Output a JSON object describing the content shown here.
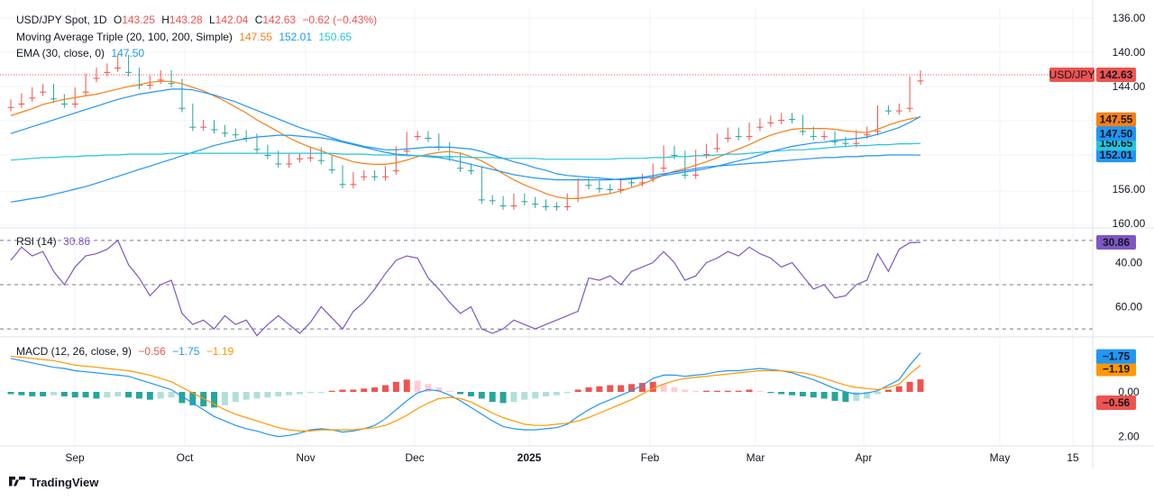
{
  "colors": {
    "up": "#26a69a",
    "down": "#ef5350",
    "sma20": "#f57f17",
    "sma100": "#2196f3",
    "sma200": "#26c6da",
    "ema30": "#2196f3",
    "rsi_line": "#7e57c2",
    "rsi_band": "#ede7f6",
    "macd_line": "#2196f3",
    "signal_line": "#ff9800",
    "hist_pos_strong": "#26a69a",
    "hist_pos_weak": "#b2dfdb",
    "hist_neg_strong": "#ef5350",
    "hist_neg_weak": "#ffcdd2"
  },
  "header": {
    "symbol": "USD/JPY Spot, 1D",
    "o_label": "O",
    "o": "143.25",
    "h_label": "H",
    "h": "143.28",
    "l_label": "L",
    "l": "142.04",
    "c_label": "C",
    "c": "142.63",
    "change": "−0.62 (−0.43%)",
    "ma_title": "Moving Average Triple (20, 100, 200, Simple)",
    "ma20": "147.55",
    "ma100": "152.01",
    "ma200": "150.65",
    "ema_title": "EMA (30, close, 0)",
    "ema": "147.50"
  },
  "rsi_legend": {
    "title": "RSI (14)",
    "value": "30.86"
  },
  "macd_legend": {
    "title": "MACD (12, 26, close, 9)",
    "hist": "−0.56",
    "macd": "−1.75",
    "signal": "−1.19"
  },
  "footer": {
    "brand": "TradingView"
  },
  "chart_data": [
    {
      "type": "candlestick",
      "title": "USD/JPY Spot, 1D",
      "x": [
        "Aug 19",
        "Aug 21",
        "Aug 23",
        "Aug 27",
        "Aug 29",
        "Sep 2",
        "Sep 4",
        "Sep 6",
        "Sep 10",
        "Sep 12",
        "Sep 16",
        "Sep 18",
        "Sep 20",
        "Sep 24",
        "Sep 26",
        "Sep 30",
        "Oct 2",
        "Oct 4",
        "Oct 8",
        "Oct 10",
        "Oct 14",
        "Oct 16",
        "Oct 18",
        "Oct 22",
        "Oct 24",
        "Oct 28",
        "Oct 30",
        "Nov 1",
        "Nov 5",
        "Nov 7",
        "Nov 11",
        "Nov 13",
        "Nov 15",
        "Nov 19",
        "Nov 21",
        "Nov 25",
        "Nov 27",
        "Nov 29",
        "Dec 3",
        "Dec 5",
        "Dec 9",
        "Dec 11",
        "Dec 13",
        "Dec 17",
        "Dec 19",
        "Dec 23",
        "Dec 26",
        "Dec 30",
        "Jan 2",
        "Jan 6",
        "Jan 8",
        "Jan 10",
        "Jan 14",
        "Jan 16",
        "Jan 20",
        "Jan 22",
        "Jan 24",
        "Jan 28",
        "Jan 30",
        "Feb 3",
        "Feb 5",
        "Feb 7",
        "Feb 11",
        "Feb 13",
        "Feb 17",
        "Feb 19",
        "Feb 21",
        "Feb 25",
        "Feb 27",
        "Mar 3",
        "Mar 5",
        "Mar 7",
        "Mar 11",
        "Mar 13",
        "Mar 17",
        "Mar 19",
        "Mar 21",
        "Mar 25",
        "Mar 27",
        "Mar 31",
        "Apr 2",
        "Apr 4",
        "Apr 8",
        "Apr 10",
        "Apr 14",
        "Apr 16"
      ],
      "close": [
        146.0,
        145.3,
        144.6,
        144.2,
        145.4,
        146.0,
        144.6,
        143.0,
        142.3,
        141.8,
        140.8,
        142.3,
        143.8,
        143.2,
        142.6,
        143.6,
        146.5,
        148.7,
        148.4,
        149.0,
        149.4,
        149.6,
        150.0,
        151.3,
        152.0,
        153.0,
        152.4,
        152.3,
        151.6,
        152.6,
        153.7,
        155.4,
        154.5,
        154.3,
        154.5,
        153.8,
        151.5,
        149.8,
        149.7,
        150.0,
        151.0,
        152.2,
        153.5,
        153.8,
        157.2,
        157.3,
        157.9,
        157.0,
        157.4,
        157.7,
        158.0,
        158.0,
        157.0,
        155.2,
        155.5,
        155.9,
        156.0,
        155.2,
        155.2,
        154.7,
        153.5,
        151.4,
        152.0,
        154.3,
        151.9,
        151.2,
        150.0,
        149.3,
        149.8,
        148.7,
        148.2,
        147.9,
        147.6,
        147.8,
        149.2,
        149.8,
        149.7,
        150.4,
        150.6,
        149.6,
        149.2,
        146.7,
        146.8,
        146.5,
        143.3,
        142.63
      ],
      "ylim": [
        134,
        161
      ],
      "y_ticks": [
        "160.00",
        "156.00",
        "152.01",
        "150.65",
        "147.55",
        "147.50",
        "144.00",
        "142.63",
        "140.00",
        "136.00"
      ],
      "series": [
        {
          "name": "20",
          "values": [
            147.4,
            147.0,
            146.6,
            146.1,
            145.8,
            145.5,
            145.3,
            145.1,
            144.9,
            144.6,
            144.3,
            144.0,
            143.8,
            143.5,
            143.4,
            143.4,
            143.7,
            144.1,
            144.5,
            145.1,
            145.7,
            146.4,
            147.1,
            147.9,
            148.6,
            149.3,
            150.0,
            150.6,
            151.1,
            151.5,
            152.0,
            152.4,
            152.8,
            153.0,
            153.1,
            153.1,
            152.9,
            152.6,
            152.2,
            151.9,
            151.7,
            151.6,
            151.8,
            152.2,
            152.7,
            153.4,
            154.2,
            154.9,
            155.5,
            156.0,
            156.5,
            156.9,
            157.1,
            157.1,
            156.9,
            156.7,
            156.5,
            156.2,
            155.8,
            155.4,
            154.9,
            154.3,
            153.9,
            153.6,
            153.2,
            152.8,
            152.3,
            151.8,
            151.3,
            150.8,
            150.2,
            149.7,
            149.3,
            149.0,
            148.9,
            148.9,
            148.9,
            149.0,
            149.2,
            149.3,
            149.4,
            149.0,
            148.5,
            148.1,
            147.8,
            147.55
          ]
        },
        {
          "name": "100",
          "values": [
            157.5,
            157.3,
            157.1,
            156.9,
            156.6,
            156.3,
            156.0,
            155.7,
            155.3,
            154.9,
            154.5,
            154.1,
            153.7,
            153.3,
            152.9,
            152.5,
            152.1,
            151.7,
            151.3,
            150.9,
            150.6,
            150.3,
            150.1,
            149.9,
            149.8,
            149.7,
            149.7,
            149.8,
            149.9,
            150.0,
            150.2,
            150.5,
            150.8,
            151.1,
            151.4,
            151.7,
            151.9,
            152.0,
            152.1,
            152.2,
            152.3,
            152.5,
            152.8,
            153.1,
            153.4,
            153.7,
            154.0,
            154.3,
            154.5,
            154.7,
            154.8,
            154.9,
            154.9,
            154.9,
            154.9,
            154.9,
            154.9,
            154.8,
            154.7,
            154.6,
            154.4,
            154.2,
            154.0,
            153.8,
            153.6,
            153.4,
            153.3,
            153.2,
            153.1,
            153.0,
            152.9,
            152.8,
            152.7,
            152.6,
            152.5,
            152.4,
            152.3,
            152.3,
            152.2,
            152.2,
            152.1,
            152.1,
            152.0,
            152.0,
            152.0,
            152.01
          ]
        },
        {
          "name": "200",
          "values": [
            152.6,
            152.5,
            152.4,
            152.3,
            152.3,
            152.2,
            152.2,
            152.1,
            152.1,
            152.0,
            152.0,
            151.9,
            151.9,
            151.9,
            151.9,
            151.8,
            151.8,
            151.8,
            151.8,
            151.8,
            151.8,
            151.8,
            151.8,
            151.8,
            151.8,
            151.8,
            151.8,
            151.8,
            151.8,
            151.8,
            151.8,
            151.9,
            151.9,
            151.9,
            152.0,
            152.0,
            152.0,
            152.1,
            152.1,
            152.1,
            152.2,
            152.2,
            152.2,
            152.3,
            152.3,
            152.3,
            152.4,
            152.4,
            152.4,
            152.4,
            152.5,
            152.5,
            152.5,
            152.5,
            152.5,
            152.5,
            152.5,
            152.4,
            152.4,
            152.4,
            152.3,
            152.3,
            152.2,
            152.2,
            152.1,
            152.1,
            152.0,
            151.9,
            151.9,
            151.8,
            151.7,
            151.6,
            151.5,
            151.4,
            151.4,
            151.3,
            151.2,
            151.1,
            151.0,
            150.9,
            150.9,
            150.8,
            150.8,
            150.7,
            150.7,
            150.65
          ]
        },
        {
          "name": "EMA 30",
          "values": [
            149.5,
            149.1,
            148.7,
            148.3,
            147.9,
            147.5,
            147.1,
            146.7,
            146.3,
            145.9,
            145.5,
            145.2,
            144.9,
            144.7,
            144.5,
            144.3,
            144.3,
            144.4,
            144.7,
            145.0,
            145.4,
            145.8,
            146.3,
            146.8,
            147.3,
            147.8,
            148.3,
            148.8,
            149.2,
            149.6,
            150.0,
            150.4,
            150.7,
            151.0,
            151.2,
            151.4,
            151.4,
            151.3,
            151.2,
            151.1,
            151.1,
            151.1,
            151.2,
            151.3,
            151.6,
            152.0,
            152.4,
            152.8,
            153.1,
            153.5,
            153.8,
            154.2,
            154.4,
            154.5,
            154.6,
            154.7,
            154.8,
            154.9,
            154.8,
            154.7,
            154.6,
            154.4,
            154.2,
            154.0,
            153.8,
            153.6,
            153.3,
            153.0,
            152.7,
            152.4,
            152.0,
            151.6,
            151.3,
            151.0,
            150.8,
            150.6,
            150.5,
            150.3,
            150.2,
            150.1,
            149.9,
            149.6,
            149.2,
            148.8,
            148.2,
            147.5
          ]
        }
      ]
    },
    {
      "type": "line",
      "title": "RSI (14)",
      "values": [
        39,
        33,
        37,
        35,
        44,
        50,
        42,
        37,
        36,
        34,
        30,
        41,
        47,
        55,
        50,
        48,
        63,
        68,
        66,
        70,
        64,
        68,
        66,
        73,
        68,
        64,
        68,
        72,
        67,
        60,
        65,
        70,
        62,
        58,
        52,
        45,
        39,
        37,
        38,
        47,
        52,
        58,
        63,
        60,
        70,
        72,
        70,
        66,
        68,
        70,
        68,
        66,
        64,
        62,
        47,
        48,
        46,
        50,
        44,
        42,
        40,
        35,
        40,
        48,
        46,
        40,
        38,
        35,
        37,
        33,
        36,
        38,
        42,
        40,
        46,
        52,
        50,
        56,
        55,
        50,
        48,
        36,
        44,
        34,
        31,
        30.86
      ],
      "ylim": [
        28,
        72
      ],
      "y_ticks": [
        "60.00",
        "40.00",
        "30.86"
      ]
    },
    {
      "type": "bar+line",
      "title": "MACD (12, 26, close, 9)",
      "histogram": [
        0.1,
        0.15,
        0.2,
        0.2,
        0.15,
        0.2,
        0.25,
        0.25,
        0.3,
        0.25,
        0.2,
        0.25,
        0.3,
        0.35,
        0.3,
        0.25,
        0.5,
        0.6,
        0.65,
        0.7,
        0.6,
        0.45,
        0.35,
        0.3,
        0.25,
        0.2,
        0.15,
        0.1,
        0.05,
        0.0,
        -0.05,
        -0.1,
        -0.1,
        -0.15,
        -0.2,
        -0.3,
        -0.45,
        -0.55,
        -0.5,
        -0.35,
        -0.2,
        -0.05,
        0.1,
        0.2,
        0.3,
        0.45,
        0.5,
        0.45,
        0.35,
        0.3,
        0.2,
        0.15,
        0.05,
        -0.1,
        -0.2,
        -0.25,
        -0.3,
        -0.3,
        -0.35,
        -0.4,
        -0.45,
        -0.35,
        -0.2,
        -0.1,
        -0.05,
        -0.05,
        -0.05,
        -0.05,
        -0.05,
        -0.1,
        -0.05,
        0.05,
        0.1,
        0.15,
        0.2,
        0.25,
        0.3,
        0.4,
        0.45,
        0.4,
        0.3,
        0.1,
        -0.1,
        -0.25,
        -0.45,
        -0.56
      ],
      "macd": [
        -1.5,
        -1.4,
        -1.3,
        -1.2,
        -1.1,
        -1.05,
        -0.95,
        -0.9,
        -0.85,
        -0.8,
        -0.75,
        -0.7,
        -0.55,
        -0.4,
        -0.25,
        -0.1,
        0.2,
        0.5,
        0.8,
        1.1,
        1.3,
        1.5,
        1.65,
        1.75,
        1.9,
        2.0,
        1.95,
        1.85,
        1.7,
        1.65,
        1.7,
        1.8,
        1.75,
        1.65,
        1.5,
        1.2,
        0.8,
        0.4,
        0.05,
        -0.1,
        -0.05,
        0.15,
        0.4,
        0.7,
        1.0,
        1.3,
        1.55,
        1.65,
        1.7,
        1.7,
        1.65,
        1.6,
        1.45,
        1.1,
        0.8,
        0.55,
        0.35,
        0.15,
        -0.05,
        -0.3,
        -0.6,
        -0.75,
        -0.75,
        -0.7,
        -0.75,
        -0.8,
        -0.9,
        -0.95,
        -0.95,
        -1.0,
        -1.05,
        -1.0,
        -0.95,
        -0.85,
        -0.7,
        -0.55,
        -0.35,
        -0.15,
        0.0,
        0.1,
        0.05,
        -0.05,
        -0.3,
        -0.55,
        -1.2,
        -1.75
      ],
      "signal": [
        -1.6,
        -1.55,
        -1.5,
        -1.45,
        -1.4,
        -1.3,
        -1.2,
        -1.15,
        -1.1,
        -1.05,
        -1.0,
        -0.95,
        -0.85,
        -0.75,
        -0.6,
        -0.45,
        -0.2,
        0.05,
        0.3,
        0.55,
        0.8,
        1.0,
        1.15,
        1.3,
        1.45,
        1.6,
        1.7,
        1.75,
        1.75,
        1.7,
        1.7,
        1.7,
        1.7,
        1.65,
        1.6,
        1.5,
        1.3,
        1.05,
        0.75,
        0.5,
        0.3,
        0.25,
        0.3,
        0.45,
        0.7,
        0.95,
        1.15,
        1.3,
        1.45,
        1.5,
        1.5,
        1.45,
        1.4,
        1.3,
        1.15,
        0.95,
        0.75,
        0.55,
        0.35,
        0.1,
        -0.15,
        -0.35,
        -0.5,
        -0.6,
        -0.65,
        -0.7,
        -0.75,
        -0.8,
        -0.85,
        -0.9,
        -0.95,
        -0.95,
        -0.95,
        -0.9,
        -0.85,
        -0.75,
        -0.6,
        -0.45,
        -0.3,
        -0.2,
        -0.15,
        -0.1,
        -0.2,
        -0.35,
        -0.8,
        -1.19
      ],
      "ylim": [
        -2.3,
        2.3
      ],
      "y_ticks": [
        "2.00",
        "0.00",
        "−0.56",
        "−1.19",
        "−1.75"
      ]
    }
  ],
  "x_axis_labels": [
    "Sep",
    "Oct",
    "Nov",
    "Dec",
    "2025",
    "Feb",
    "Mar",
    "Apr",
    "May",
    "15"
  ],
  "last_price_label": "USD/JPY"
}
